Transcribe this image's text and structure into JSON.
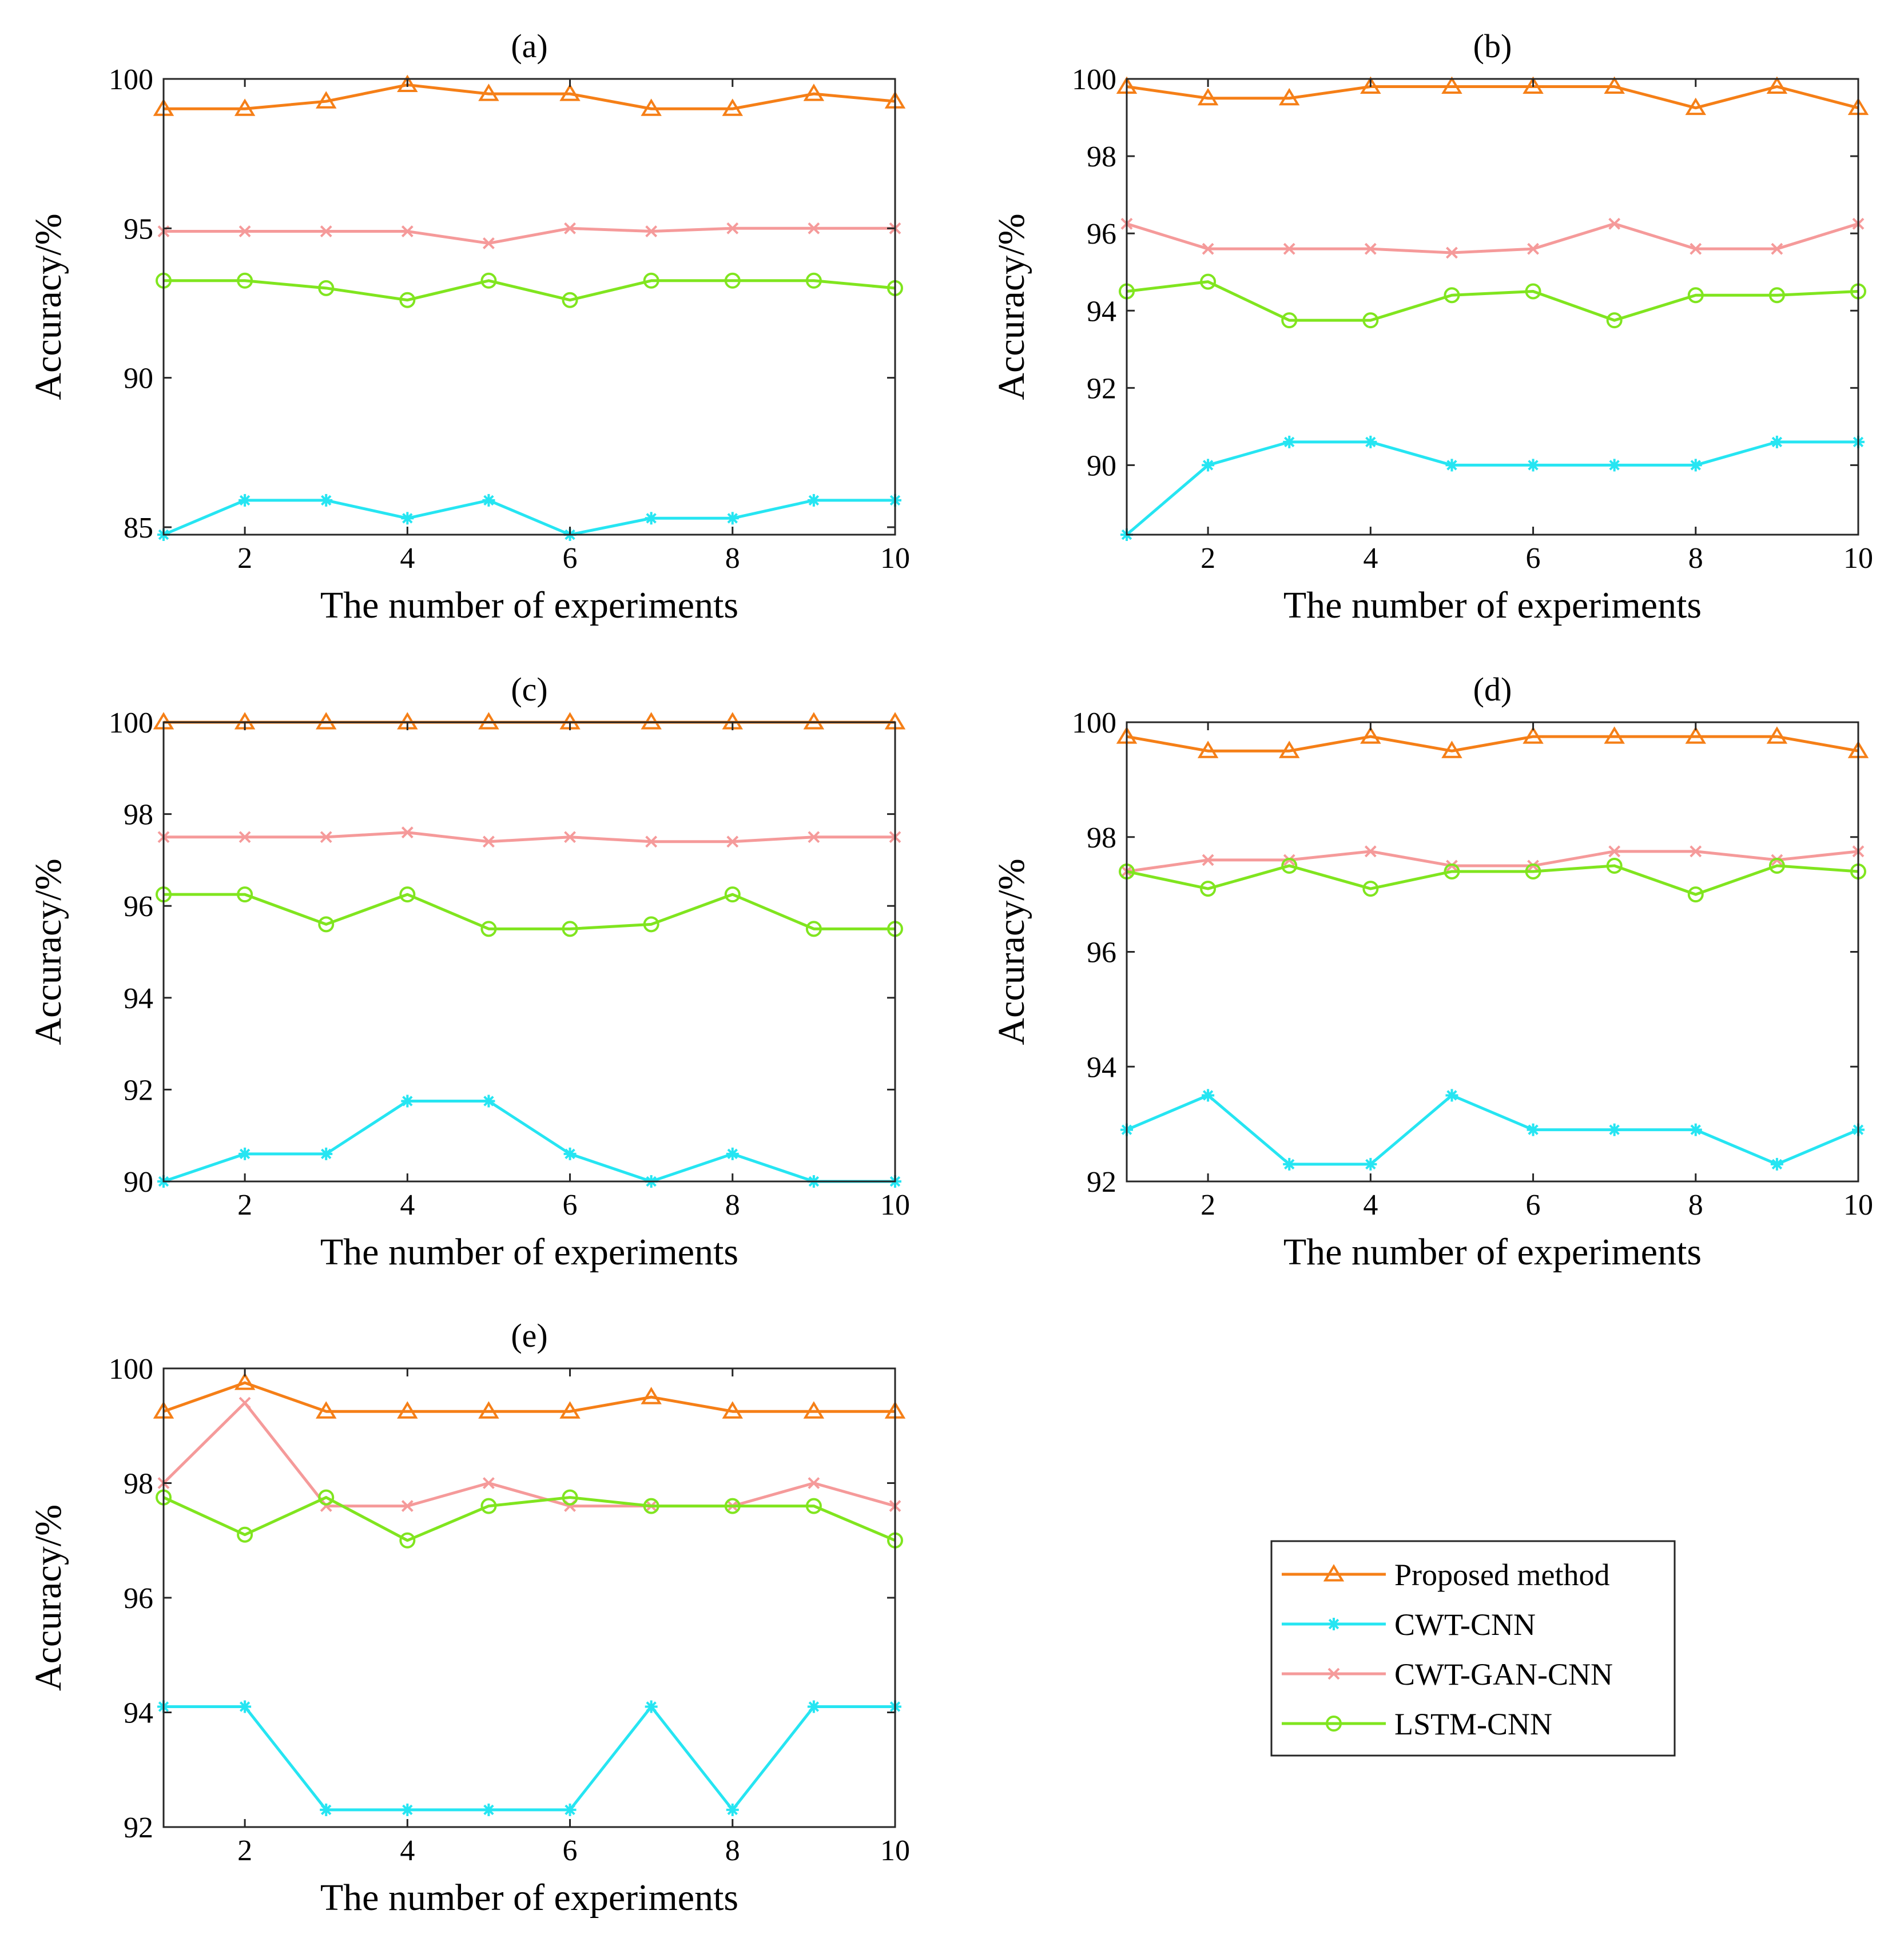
{
  "figure": {
    "legend": {
      "placement": "lower-right empty cell",
      "entries": [
        "Proposed method",
        "CWT-CNN",
        "CWT-GAN-CNN",
        "LSTM-CNN"
      ]
    }
  },
  "series_styles": [
    {
      "name": "Proposed method",
      "color": "#F57F17",
      "marker": "triangle"
    },
    {
      "name": "CWT-CNN",
      "color": "#26E5F2",
      "marker": "asterisk"
    },
    {
      "name": "CWT-GAN-CNN",
      "color": "#F59A9A",
      "marker": "cross"
    },
    {
      "name": "LSTM-CNN",
      "color": "#80E51F",
      "marker": "circle"
    }
  ],
  "chart_data": [
    {
      "type": "line",
      "title": "(a)",
      "xlabel": "The number of experiments",
      "ylabel": "Accuracy/%",
      "xlim": [
        1,
        10
      ],
      "ylim": [
        84.75,
        100
      ],
      "xticks": [
        "2",
        "4",
        "6",
        "8",
        "10"
      ],
      "yticks": [
        "85",
        "90",
        "95",
        "100"
      ],
      "x": [
        1,
        2,
        3,
        4,
        5,
        6,
        7,
        8,
        9,
        10
      ],
      "series": [
        {
          "name": "Proposed method",
          "values": [
            99.0,
            99.0,
            99.25,
            99.8,
            99.5,
            99.5,
            99.0,
            99.0,
            99.5,
            99.25
          ]
        },
        {
          "name": "CWT-CNN",
          "values": [
            84.75,
            85.9,
            85.9,
            85.3,
            85.9,
            84.75,
            85.3,
            85.3,
            85.9,
            85.9
          ]
        },
        {
          "name": "CWT-GAN-CNN",
          "values": [
            94.9,
            94.9,
            94.9,
            94.9,
            94.5,
            95.0,
            94.9,
            95.0,
            95.0,
            95.0
          ]
        },
        {
          "name": "LSTM-CNN",
          "values": [
            93.25,
            93.25,
            93.0,
            92.6,
            93.25,
            92.6,
            93.25,
            93.25,
            93.25,
            93.0
          ]
        }
      ]
    },
    {
      "type": "line",
      "title": "(b)",
      "xlabel": "The number of experiments",
      "ylabel": "Accuracy/%",
      "xlim": [
        1,
        10
      ],
      "ylim": [
        88.2,
        100
      ],
      "xticks": [
        "2",
        "4",
        "6",
        "8",
        "10"
      ],
      "yticks": [
        "90",
        "92",
        "94",
        "96",
        "98",
        "100"
      ],
      "x": [
        1,
        2,
        3,
        4,
        5,
        6,
        7,
        8,
        9,
        10
      ],
      "series": [
        {
          "name": "Proposed method",
          "values": [
            99.8,
            99.5,
            99.5,
            99.8,
            99.8,
            99.8,
            99.8,
            99.25,
            99.8,
            99.25
          ]
        },
        {
          "name": "CWT-CNN",
          "values": [
            88.2,
            90.0,
            90.6,
            90.6,
            90.0,
            90.0,
            90.0,
            90.0,
            90.6,
            90.6
          ]
        },
        {
          "name": "CWT-GAN-CNN",
          "values": [
            96.25,
            95.6,
            95.6,
            95.6,
            95.5,
            95.6,
            96.25,
            95.6,
            95.6,
            96.25
          ]
        },
        {
          "name": "LSTM-CNN",
          "values": [
            94.5,
            94.75,
            93.75,
            93.75,
            94.4,
            94.5,
            93.75,
            94.4,
            94.4,
            94.5
          ]
        }
      ]
    },
    {
      "type": "line",
      "title": "(c)",
      "xlabel": "The number of experiments",
      "ylabel": "Accuracy/%",
      "xlim": [
        1,
        10
      ],
      "ylim": [
        90,
        100
      ],
      "xticks": [
        "2",
        "4",
        "6",
        "8",
        "10"
      ],
      "yticks": [
        "90",
        "92",
        "94",
        "96",
        "98",
        "100"
      ],
      "x": [
        1,
        2,
        3,
        4,
        5,
        6,
        7,
        8,
        9,
        10
      ],
      "series": [
        {
          "name": "Proposed method",
          "values": [
            100,
            100,
            100,
            100,
            100,
            100,
            100,
            100,
            100,
            100
          ]
        },
        {
          "name": "CWT-CNN",
          "values": [
            90.0,
            90.6,
            90.6,
            91.75,
            91.75,
            90.6,
            90.0,
            90.6,
            90.0,
            90.0
          ]
        },
        {
          "name": "CWT-GAN-CNN",
          "values": [
            97.5,
            97.5,
            97.5,
            97.6,
            97.4,
            97.5,
            97.4,
            97.4,
            97.5,
            97.5
          ]
        },
        {
          "name": "LSTM-CNN",
          "values": [
            96.25,
            96.25,
            95.6,
            96.25,
            95.5,
            95.5,
            95.6,
            96.25,
            95.5,
            95.5
          ]
        }
      ]
    },
    {
      "type": "line",
      "title": "(d)",
      "xlabel": "The number of experiments",
      "ylabel": "Accuracy/%",
      "xlim": [
        1,
        10
      ],
      "ylim": [
        92,
        100
      ],
      "xticks": [
        "2",
        "4",
        "6",
        "8",
        "10"
      ],
      "yticks": [
        "92",
        "94",
        "96",
        "98",
        "100"
      ],
      "x": [
        1,
        2,
        3,
        4,
        5,
        6,
        7,
        8,
        9,
        10
      ],
      "series": [
        {
          "name": "Proposed method",
          "values": [
            99.75,
            99.5,
            99.5,
            99.75,
            99.5,
            99.75,
            99.75,
            99.75,
            99.75,
            99.5
          ]
        },
        {
          "name": "CWT-CNN",
          "values": [
            92.9,
            93.5,
            92.3,
            92.3,
            93.5,
            92.9,
            92.9,
            92.9,
            92.3,
            92.9
          ]
        },
        {
          "name": "CWT-GAN-CNN",
          "values": [
            97.4,
            97.6,
            97.6,
            97.75,
            97.5,
            97.5,
            97.75,
            97.75,
            97.6,
            97.75
          ]
        },
        {
          "name": "LSTM-CNN",
          "values": [
            97.4,
            97.1,
            97.5,
            97.1,
            97.4,
            97.4,
            97.5,
            97.0,
            97.5,
            97.4
          ]
        }
      ]
    },
    {
      "type": "line",
      "title": "(e)",
      "xlabel": "The number of experiments",
      "ylabel": "Accuracy/%",
      "xlim": [
        1,
        10
      ],
      "ylim": [
        92,
        100
      ],
      "xticks": [
        "2",
        "4",
        "6",
        "8",
        "10"
      ],
      "yticks": [
        "92",
        "94",
        "96",
        "98",
        "100"
      ],
      "x": [
        1,
        2,
        3,
        4,
        5,
        6,
        7,
        8,
        9,
        10
      ],
      "series": [
        {
          "name": "Proposed method",
          "values": [
            99.25,
            99.75,
            99.25,
            99.25,
            99.25,
            99.25,
            99.5,
            99.25,
            99.25,
            99.25
          ]
        },
        {
          "name": "CWT-CNN",
          "values": [
            94.1,
            94.1,
            92.3,
            92.3,
            92.3,
            92.3,
            94.1,
            92.3,
            94.1,
            94.1
          ]
        },
        {
          "name": "CWT-GAN-CNN",
          "values": [
            98.0,
            99.4,
            97.6,
            97.6,
            98.0,
            97.6,
            97.6,
            97.6,
            98.0,
            97.6
          ]
        },
        {
          "name": "LSTM-CNN",
          "values": [
            97.75,
            97.1,
            97.75,
            97.0,
            97.6,
            97.75,
            97.6,
            97.6,
            97.6,
            97.0
          ]
        }
      ]
    }
  ]
}
